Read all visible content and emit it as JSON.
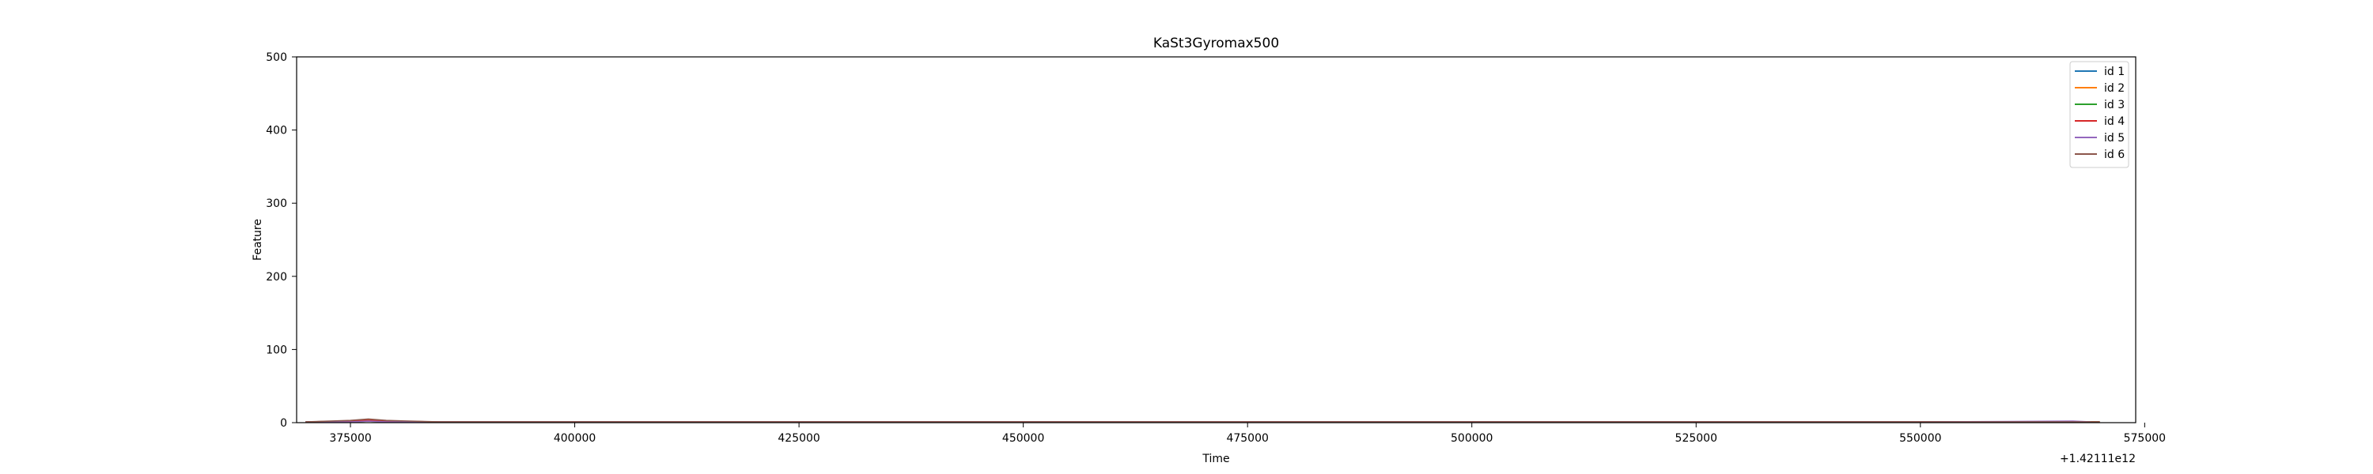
{
  "chart_data": {
    "type": "line",
    "title": "KaSt3Gyromax500",
    "xlabel": "Time",
    "ylabel": "Feature",
    "x_offset_label": "+1.42111e12",
    "xlim": [
      369000,
      574000
    ],
    "ylim": [
      0,
      500
    ],
    "xticks": [
      "375000",
      "400000",
      "425000",
      "450000",
      "475000",
      "500000",
      "525000",
      "550000",
      "575000"
    ],
    "yticks": [
      "0",
      "100",
      "200",
      "300",
      "400",
      "500"
    ],
    "grid": false,
    "legend_position": "top-right",
    "series": [
      {
        "name": "id 1",
        "color": "#1f77b4",
        "x": [
          370000,
          375000,
          377000,
          379000,
          385000,
          400000,
          425000,
          450000,
          475000,
          500000,
          525000,
          550000,
          570000
        ],
        "y": [
          1,
          2,
          3,
          2,
          1,
          1,
          1,
          1,
          1,
          1,
          1,
          1,
          1
        ]
      },
      {
        "name": "id 2",
        "color": "#ff7f0e",
        "x": [
          370000,
          375000,
          377000,
          379000,
          385000,
          400000,
          425000,
          450000,
          475000,
          500000,
          525000,
          550000,
          570000
        ],
        "y": [
          1,
          2,
          4,
          2,
          1,
          1,
          1,
          1,
          1,
          1,
          1,
          1,
          1
        ]
      },
      {
        "name": "id 3",
        "color": "#2ca02c",
        "x": [
          370000,
          375000,
          377000,
          379000,
          385000,
          400000,
          425000,
          450000,
          475000,
          500000,
          525000,
          550000,
          570000
        ],
        "y": [
          1,
          1,
          2,
          1,
          1,
          1,
          1,
          1,
          1,
          1,
          1,
          1,
          1
        ]
      },
      {
        "name": "id 4",
        "color": "#d62728",
        "x": [
          370000,
          375000,
          377000,
          379000,
          385000,
          400000,
          425000,
          450000,
          475000,
          500000,
          525000,
          550000,
          570000
        ],
        "y": [
          1,
          2,
          3,
          2,
          1,
          1,
          1,
          1,
          1,
          1,
          1,
          1,
          1
        ]
      },
      {
        "name": "id 5",
        "color": "#9467bd",
        "x": [
          370000,
          375000,
          377000,
          379000,
          385000,
          400000,
          425000,
          450000,
          475000,
          500000,
          525000,
          550000,
          567000,
          569000
        ],
        "y": [
          1,
          1,
          2,
          1,
          1,
          1,
          1,
          1,
          1,
          1,
          1,
          1,
          2,
          1
        ]
      },
      {
        "name": "id 6",
        "color": "#8c564b",
        "x": [
          370000,
          375000,
          377000,
          379000,
          385000,
          400000,
          425000,
          450000,
          475000,
          500000,
          525000,
          550000,
          570000
        ],
        "y": [
          1,
          3,
          5,
          3,
          1,
          1,
          1,
          1,
          1,
          1,
          1,
          1,
          1
        ]
      }
    ]
  }
}
